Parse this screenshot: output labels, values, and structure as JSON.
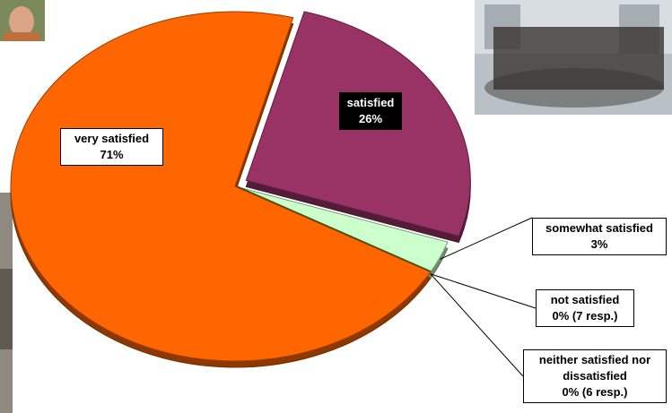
{
  "chart_data": {
    "type": "pie",
    "categories": [
      "satisfied",
      "somewhat satisfied",
      "not satisfied",
      "neither satisfied nor dissatisfied",
      "very satisfied"
    ],
    "values": [
      26,
      3,
      0,
      0,
      71
    ],
    "value_labels": [
      "26%",
      "3%",
      "0% (7 resp.)",
      "0% (6 resp.)",
      "71%"
    ],
    "colors": [
      "#993366",
      "#ccffcc",
      "#009900",
      "#339933",
      "#ff6600"
    ]
  }
}
